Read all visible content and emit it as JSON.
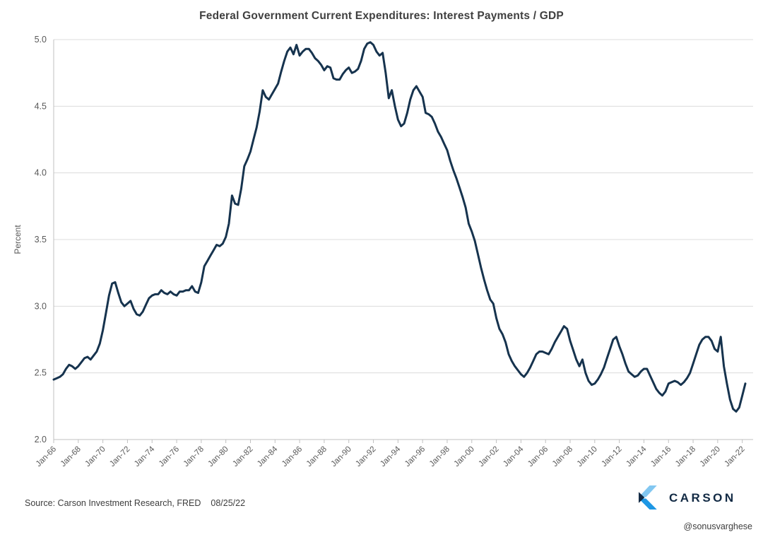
{
  "title": "Federal Government Current Expenditures: Interest Payments / GDP",
  "footer": {
    "source": "Source: Carson Investment Research, FRED",
    "date": "08/25/22",
    "brand": "CARSON",
    "handle": "@sonusvarghese"
  },
  "colors": {
    "line": "#16334e",
    "grid": "#dcdcdc",
    "axis": "#c0c0c0",
    "tick_text": "#595959",
    "title_text": "#3f3f3f",
    "logo_light_blue": "#82c7f1",
    "logo_blue": "#1e97e4",
    "logo_navy": "#122a44"
  },
  "chart_data": {
    "type": "line",
    "title": "Federal Government Current Expenditures: Interest Payments / GDP",
    "xlabel": "",
    "ylabel": "Percent",
    "ylim": [
      2.0,
      5.0
    ],
    "y_tick_step": 0.5,
    "y_tick_labels": [
      "2.0",
      "2.5",
      "3.0",
      "3.5",
      "4.0",
      "4.5",
      "5.0"
    ],
    "x_tick_labels": [
      "Jan-66",
      "Jan-68",
      "Jan-70",
      "Jan-72",
      "Jan-74",
      "Jan-76",
      "Jan-78",
      "Jan-80",
      "Jan-82",
      "Jan-84",
      "Jan-86",
      "Jan-88",
      "Jan-90",
      "Jan-92",
      "Jan-94",
      "Jan-96",
      "Jan-98",
      "Jan-00",
      "Jan-02",
      "Jan-04",
      "Jan-06",
      "Jan-08",
      "Jan-10",
      "Jan-12",
      "Jan-14",
      "Jan-16",
      "Jan-18",
      "Jan-20",
      "Jan-22"
    ],
    "x_tick_years": [
      1966,
      1968,
      1970,
      1972,
      1974,
      1976,
      1978,
      1980,
      1982,
      1984,
      1986,
      1988,
      1990,
      1992,
      1994,
      1996,
      1998,
      2000,
      2002,
      2004,
      2006,
      2008,
      2010,
      2012,
      2014,
      2016,
      2018,
      2020,
      2022
    ],
    "grid": true,
    "legend": "none",
    "frequency": "quarterly",
    "series": [
      {
        "name": "Interest Payments / GDP (Percent)",
        "start_year": 1966.0,
        "interval_years": 0.25,
        "values": [
          2.45,
          2.46,
          2.47,
          2.49,
          2.53,
          2.56,
          2.55,
          2.53,
          2.55,
          2.58,
          2.61,
          2.62,
          2.6,
          2.63,
          2.66,
          2.72,
          2.82,
          2.95,
          3.08,
          3.17,
          3.18,
          3.1,
          3.03,
          3.0,
          3.02,
          3.04,
          2.98,
          2.94,
          2.93,
          2.96,
          3.01,
          3.06,
          3.08,
          3.09,
          3.09,
          3.12,
          3.1,
          3.09,
          3.11,
          3.09,
          3.08,
          3.11,
          3.11,
          3.12,
          3.12,
          3.15,
          3.11,
          3.1,
          3.18,
          3.3,
          3.34,
          3.38,
          3.42,
          3.46,
          3.45,
          3.47,
          3.52,
          3.62,
          3.83,
          3.77,
          3.76,
          3.88,
          4.05,
          4.1,
          4.16,
          4.25,
          4.34,
          4.46,
          4.62,
          4.57,
          4.55,
          4.59,
          4.63,
          4.67,
          4.76,
          4.84,
          4.91,
          4.94,
          4.89,
          4.96,
          4.88,
          4.91,
          4.93,
          4.93,
          4.9,
          4.86,
          4.84,
          4.81,
          4.77,
          4.8,
          4.79,
          4.71,
          4.7,
          4.7,
          4.74,
          4.77,
          4.79,
          4.75,
          4.76,
          4.78,
          4.84,
          4.93,
          4.97,
          4.98,
          4.96,
          4.91,
          4.88,
          4.9,
          4.75,
          4.56,
          4.62,
          4.5,
          4.4,
          4.35,
          4.37,
          4.45,
          4.55,
          4.62,
          4.65,
          4.61,
          4.57,
          4.45,
          4.44,
          4.42,
          4.37,
          4.31,
          4.27,
          4.22,
          4.17,
          4.09,
          4.02,
          3.96,
          3.89,
          3.82,
          3.74,
          3.62,
          3.56,
          3.49,
          3.39,
          3.29,
          3.2,
          3.12,
          3.05,
          3.02,
          2.91,
          2.83,
          2.79,
          2.73,
          2.64,
          2.59,
          2.55,
          2.52,
          2.49,
          2.47,
          2.5,
          2.54,
          2.59,
          2.64,
          2.66,
          2.66,
          2.65,
          2.64,
          2.68,
          2.73,
          2.77,
          2.81,
          2.85,
          2.83,
          2.74,
          2.67,
          2.6,
          2.55,
          2.6,
          2.5,
          2.44,
          2.41,
          2.42,
          2.45,
          2.49,
          2.54,
          2.61,
          2.68,
          2.75,
          2.77,
          2.7,
          2.64,
          2.57,
          2.51,
          2.49,
          2.47,
          2.48,
          2.51,
          2.53,
          2.53,
          2.48,
          2.43,
          2.38,
          2.35,
          2.33,
          2.36,
          2.42,
          2.43,
          2.44,
          2.43,
          2.41,
          2.43,
          2.46,
          2.5,
          2.57,
          2.64,
          2.71,
          2.75,
          2.77,
          2.77,
          2.74,
          2.68,
          2.66,
          2.77,
          2.55,
          2.42,
          2.3,
          2.23,
          2.21,
          2.24,
          2.33,
          2.42
        ]
      }
    ]
  }
}
